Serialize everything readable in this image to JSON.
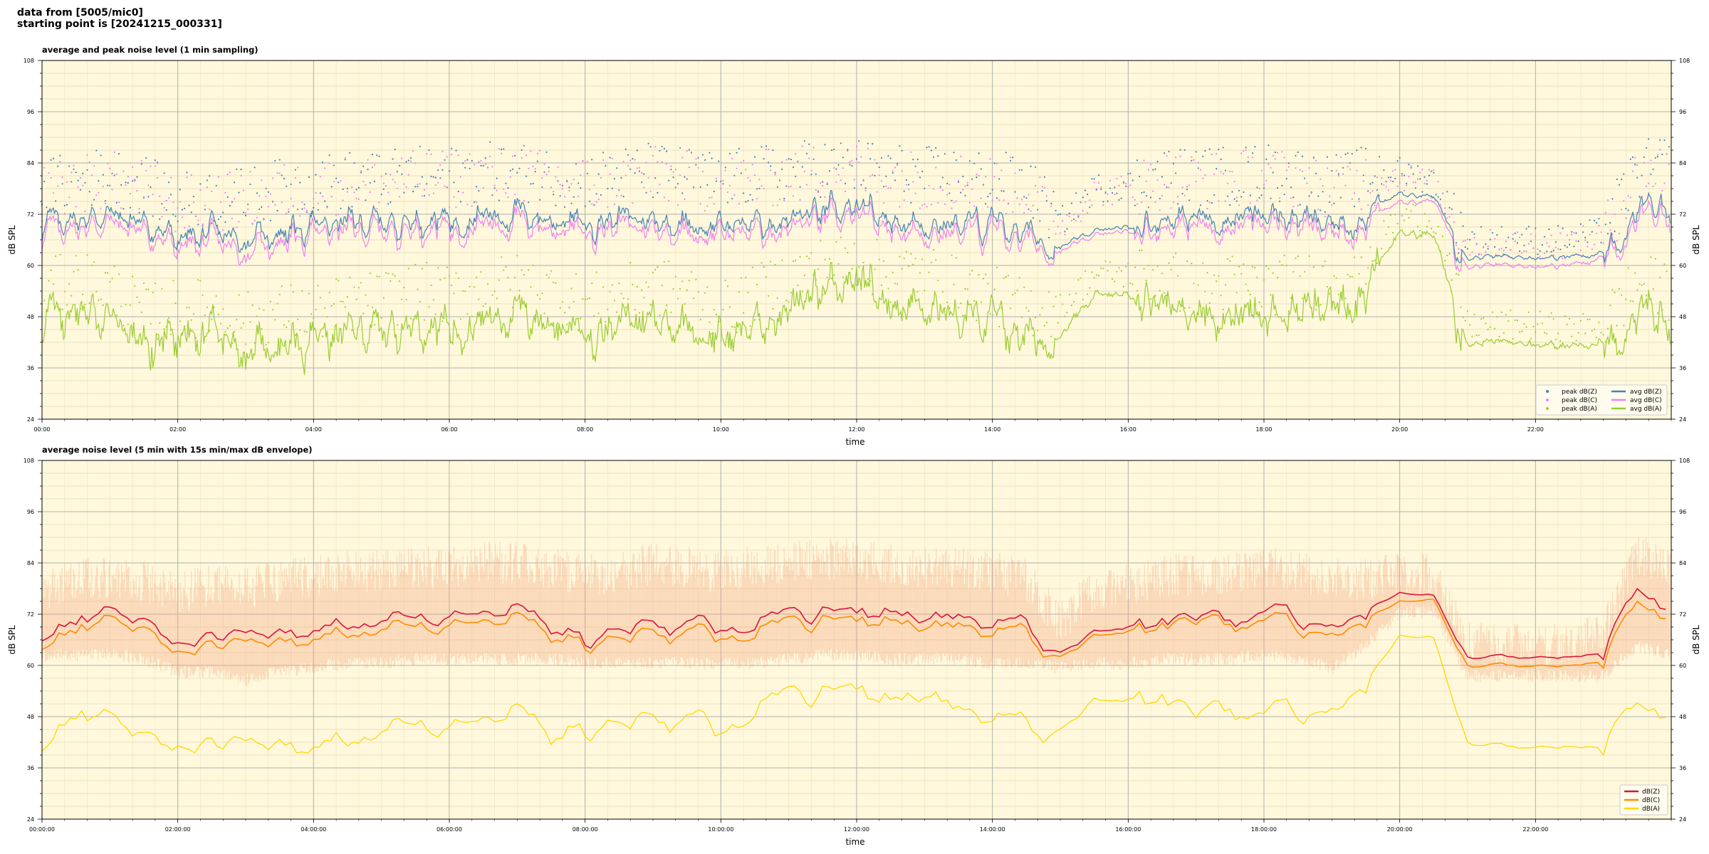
{
  "header": {
    "line1": "data from [5005/mic0]",
    "line2": "starting point is [20241215_000331]"
  },
  "chart_data": [
    {
      "type": "scatter",
      "title": "average and peak noise level (1 min sampling)",
      "xlabel": "time",
      "ylabel": "dB SPL",
      "ylim": [
        24,
        108
      ],
      "yticks": [
        24,
        36,
        48,
        60,
        72,
        84,
        96,
        108
      ],
      "x_unit": "hours",
      "xlim": [
        0,
        24
      ],
      "xtick_labels": [
        "00:00",
        "02:00",
        "04:00",
        "06:00",
        "08:00",
        "10:00",
        "12:00",
        "14:00",
        "16:00",
        "18:00",
        "20:00",
        "22:00"
      ],
      "grid": true,
      "legend_placement": "bottom-right",
      "colors": {
        "background": "#fff8dc",
        "z": "#4682b4",
        "c": "#ee82ee",
        "a": "#9acd32"
      },
      "series": [
        {
          "name": "peak dB(Z)",
          "kind": "points",
          "key": "z_peak"
        },
        {
          "name": "peak dB(C)",
          "kind": "points",
          "key": "c_peak"
        },
        {
          "name": "peak dB(A)",
          "kind": "points",
          "key": "a_peak"
        },
        {
          "name": "avg dB(Z)",
          "kind": "line",
          "key": "z_avg"
        },
        {
          "name": "avg dB(C)",
          "kind": "line",
          "key": "c_avg"
        },
        {
          "name": "avg dB(A)",
          "kind": "line",
          "key": "a_avg"
        }
      ],
      "profile": {
        "hours": [
          0,
          0.5,
          1,
          1.5,
          2,
          2.5,
          3,
          3.5,
          4,
          4.5,
          5,
          5.5,
          6,
          6.5,
          7,
          7.5,
          8,
          8.5,
          9,
          9.5,
          10,
          10.5,
          11,
          11.5,
          12,
          12.5,
          13,
          13.5,
          14,
          14.5,
          15,
          15.5,
          16,
          16.5,
          17,
          17.5,
          18,
          18.5,
          19,
          19.5,
          20,
          20.5,
          21,
          21.5,
          22,
          22.5,
          23,
          23.5,
          24
        ],
        "z_avg": [
          70,
          71,
          72,
          70,
          66,
          67,
          66,
          68,
          69,
          70,
          70,
          71,
          71,
          72,
          72,
          71,
          70,
          71,
          71,
          70,
          69,
          70,
          71,
          72,
          72,
          71,
          70,
          70,
          69,
          68,
          64,
          68,
          69,
          71,
          71,
          71,
          72,
          71,
          69,
          72,
          77,
          76,
          62,
          62,
          62,
          62,
          63,
          73,
          74
        ],
        "c_avg": [
          68,
          69,
          70,
          68,
          64,
          65,
          63,
          66,
          67,
          68,
          68,
          69,
          69,
          70,
          70,
          69,
          68,
          69,
          69,
          68,
          67,
          68,
          69,
          70,
          70,
          69,
          68,
          68,
          67,
          66,
          63,
          67,
          68,
          69,
          69,
          69,
          70,
          69,
          67,
          70,
          75,
          75,
          60,
          60,
          60,
          60,
          62,
          71,
          72
        ],
        "a_avg": [
          47,
          50,
          48,
          42,
          43,
          43,
          40,
          42,
          42,
          44,
          45,
          47,
          46,
          48,
          49,
          47,
          44,
          46,
          48,
          47,
          42,
          46,
          50,
          53,
          54,
          51,
          52,
          48,
          46,
          43,
          43,
          53,
          53,
          53,
          47,
          49,
          48,
          49,
          50,
          55,
          68,
          67,
          42,
          42,
          42,
          41,
          42,
          49,
          47
        ],
        "z_peak": [
          78,
          80,
          81,
          79,
          75,
          76,
          76,
          78,
          79,
          80,
          80,
          81,
          81,
          82,
          82,
          81,
          80,
          81,
          82,
          81,
          80,
          81,
          82,
          83,
          83,
          82,
          81,
          81,
          80,
          79,
          70,
          78,
          79,
          81,
          81,
          81,
          82,
          81,
          79,
          81,
          82,
          80,
          66,
          66,
          66,
          66,
          68,
          82,
          84
        ],
        "c_peak": [
          77,
          79,
          80,
          78,
          74,
          75,
          75,
          77,
          78,
          79,
          79,
          80,
          80,
          81,
          81,
          80,
          79,
          80,
          81,
          80,
          79,
          80,
          81,
          82,
          82,
          81,
          80,
          80,
          79,
          78,
          69,
          77,
          78,
          80,
          80,
          80,
          81,
          80,
          78,
          80,
          81,
          79,
          65,
          65,
          65,
          65,
          67,
          81,
          83
        ],
        "a_peak": [
          54,
          57,
          55,
          49,
          50,
          50,
          47,
          49,
          49,
          51,
          52,
          54,
          53,
          55,
          56,
          54,
          51,
          53,
          55,
          54,
          49,
          53,
          57,
          60,
          61,
          58,
          59,
          55,
          53,
          50,
          50,
          58,
          58,
          58,
          54,
          56,
          55,
          56,
          57,
          62,
          72,
          71,
          46,
          46,
          46,
          45,
          46,
          56,
          54
        ]
      }
    },
    {
      "type": "line",
      "title": "average noise level (5 min with 15s min/max dB envelope)",
      "xlabel": "time",
      "ylabel": "dB SPL",
      "ylim": [
        24,
        108
      ],
      "yticks": [
        24,
        36,
        48,
        60,
        72,
        84,
        96,
        108
      ],
      "x_unit": "hours",
      "xlim": [
        0,
        24
      ],
      "xtick_labels": [
        "00:00:00",
        "02:00:00",
        "04:00:00",
        "06:00:00",
        "08:00:00",
        "10:00:00",
        "12:00:00",
        "14:00:00",
        "16:00:00",
        "18:00:00",
        "20:00:00",
        "22:00:00"
      ],
      "grid": true,
      "legend_placement": "bottom-right",
      "colors": {
        "background": "#fff8dc",
        "z": "#dc143c",
        "c": "#ff8c00",
        "a": "#ffd700",
        "envelope": "#f4a582"
      },
      "series": [
        {
          "name": "dB(Z)",
          "key": "z"
        },
        {
          "name": "dB(C)",
          "key": "c"
        },
        {
          "name": "dB(A)",
          "key": "a"
        }
      ],
      "profile": {
        "hours": [
          0,
          0.5,
          1,
          1.5,
          2,
          2.5,
          3,
          3.5,
          4,
          4.5,
          5,
          5.5,
          6,
          6.5,
          7,
          7.5,
          8,
          8.5,
          9,
          9.5,
          10,
          10.5,
          11,
          11.5,
          12,
          12.5,
          13,
          13.5,
          14,
          14.5,
          15,
          15.5,
          16,
          16.5,
          17,
          17.5,
          18,
          18.5,
          19,
          19.5,
          20,
          20.5,
          21,
          21.5,
          22,
          22.5,
          23,
          23.5,
          24
        ],
        "z": [
          69,
          70,
          72,
          70,
          66,
          67,
          65,
          68,
          69,
          70,
          70,
          71,
          71,
          72,
          72,
          71,
          66,
          68,
          70,
          70,
          69,
          70,
          71,
          72,
          72,
          71,
          70,
          70,
          69,
          68,
          63,
          68,
          69,
          70,
          70,
          70,
          72,
          71,
          68,
          72,
          77,
          76,
          62,
          62,
          62,
          62,
          63,
          77,
          72
        ],
        "c": [
          67,
          68,
          70,
          68,
          64,
          65,
          63,
          66,
          67,
          68,
          68,
          69,
          69,
          70,
          70,
          69,
          65,
          66,
          68,
          68,
          67,
          68,
          69,
          70,
          70,
          69,
          68,
          68,
          67,
          66,
          62,
          67,
          68,
          69,
          69,
          69,
          70,
          69,
          66,
          70,
          75,
          75,
          60,
          60,
          60,
          60,
          61,
          74,
          70
        ],
        "a": [
          44,
          48,
          47,
          43,
          42,
          42,
          39,
          42,
          42,
          43,
          44,
          46,
          45,
          47,
          48,
          46,
          45,
          46,
          48,
          48,
          45,
          50,
          52,
          53,
          54,
          50,
          52,
          48,
          47,
          44,
          45,
          52,
          52,
          52,
          47,
          49,
          48,
          49,
          48,
          55,
          67,
          66,
          42,
          41,
          41,
          41,
          41,
          50,
          47
        ],
        "env_max": [
          76,
          78,
          79,
          78,
          75,
          77,
          76,
          78,
          79,
          80,
          80,
          81,
          81,
          82,
          82,
          81,
          79,
          80,
          82,
          81,
          80,
          81,
          82,
          83,
          83,
          82,
          81,
          81,
          80,
          78,
          68,
          76,
          77,
          79,
          79,
          79,
          81,
          80,
          78,
          78,
          80,
          79,
          63,
          63,
          63,
          63,
          66,
          84,
          80
        ],
        "env_min": [
          64,
          64,
          64,
          63,
          60,
          60,
          58,
          60,
          61,
          62,
          62,
          63,
          63,
          63,
          63,
          63,
          62,
          62,
          62,
          62,
          62,
          62,
          63,
          64,
          64,
          63,
          63,
          63,
          62,
          62,
          61,
          62,
          62,
          63,
          63,
          63,
          64,
          63,
          61,
          66,
          74,
          74,
          59,
          59,
          59,
          59,
          59,
          66,
          64
        ]
      }
    }
  ]
}
